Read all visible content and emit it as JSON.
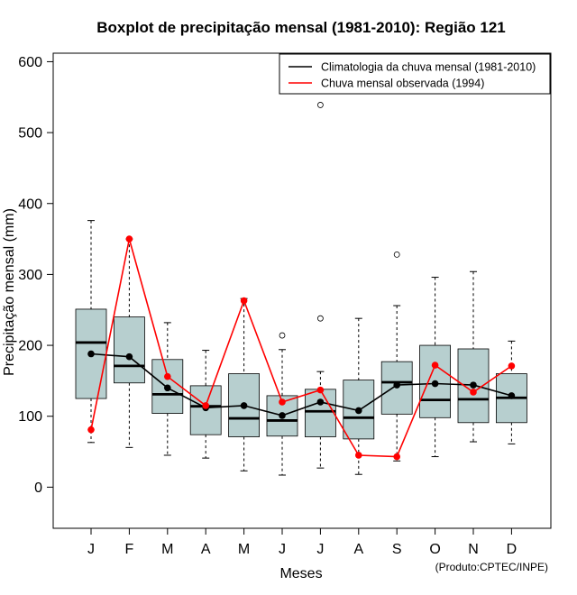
{
  "chart_data": {
    "type": "boxplot",
    "title": "Boxplot de precipitação mensal (1981-2010): Região 121",
    "xlabel": "Meses",
    "ylabel": "Precipitação mensal (mm)",
    "ylim": [
      -58,
      612
    ],
    "yticks": [
      0,
      100,
      200,
      300,
      400,
      500,
      600
    ],
    "categories": [
      "J",
      "F",
      "M",
      "A",
      "M",
      "J",
      "J",
      "A",
      "S",
      "O",
      "N",
      "D"
    ],
    "boxes": [
      {
        "whisker_low": 63,
        "q1": 125,
        "median": 204,
        "q3": 251,
        "whisker_high": 376,
        "outliers": []
      },
      {
        "whisker_low": 56,
        "q1": 147,
        "median": 171,
        "q3": 240,
        "whisker_high": 350,
        "outliers": []
      },
      {
        "whisker_low": 45,
        "q1": 104,
        "median": 131,
        "q3": 180,
        "whisker_high": 232,
        "outliers": []
      },
      {
        "whisker_low": 41,
        "q1": 74,
        "median": 114,
        "q3": 143,
        "whisker_high": 193,
        "outliers": []
      },
      {
        "whisker_low": 23,
        "q1": 71,
        "median": 97,
        "q3": 160,
        "whisker_high": 266,
        "outliers": []
      },
      {
        "whisker_low": 17,
        "q1": 72,
        "median": 94,
        "q3": 129,
        "whisker_high": 194,
        "outliers": [
          214
        ]
      },
      {
        "whisker_low": 27,
        "q1": 71,
        "median": 107,
        "q3": 138,
        "whisker_high": 163,
        "outliers": [
          238,
          539
        ]
      },
      {
        "whisker_low": 18,
        "q1": 68,
        "median": 98,
        "q3": 151,
        "whisker_high": 238,
        "outliers": []
      },
      {
        "whisker_low": 37,
        "q1": 103,
        "median": 148,
        "q3": 177,
        "whisker_high": 256,
        "outliers": [
          328
        ]
      },
      {
        "whisker_low": 43,
        "q1": 98,
        "median": 123,
        "q3": 200,
        "whisker_high": 296,
        "outliers": []
      },
      {
        "whisker_low": 64,
        "q1": 91,
        "median": 124,
        "q3": 195,
        "whisker_high": 304,
        "outliers": []
      },
      {
        "whisker_low": 61,
        "q1": 91,
        "median": 126,
        "q3": 160,
        "whisker_high": 206,
        "outliers": []
      }
    ],
    "series": [
      {
        "name": "Climatologia da chuva mensal (1981-2010)",
        "color": "#000000",
        "values": [
          188,
          184,
          140,
          112,
          115,
          101,
          120,
          108,
          144,
          146,
          144,
          129
        ]
      },
      {
        "name": "Chuva mensal observada (1994)",
        "color": "#ff0000",
        "values": [
          81,
          350,
          156,
          115,
          263,
          120,
          137,
          45,
          43,
          172,
          134,
          171
        ]
      }
    ],
    "box_fill": "#b7cfcf",
    "legend_position": "top-right",
    "credit": "(Produto:CPTEC/INPE)"
  }
}
